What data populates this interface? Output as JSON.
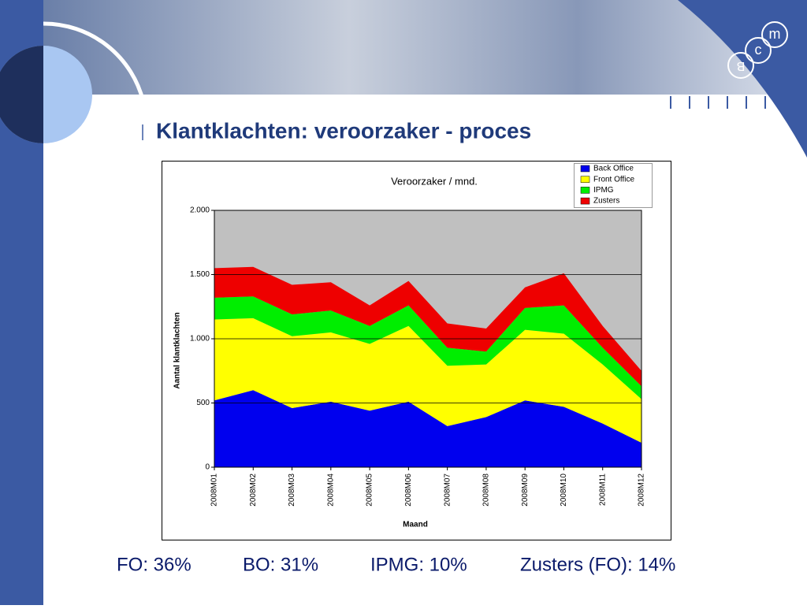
{
  "slide_title": "Klantklachten: veroorzaker - proces",
  "logo": [
    "m",
    "c",
    "B"
  ],
  "footer": [
    "FO: 36%",
    "BO: 31%",
    "IPMG: 10%",
    "Zusters (FO): 14%"
  ],
  "chart_data": {
    "type": "stacked_area",
    "title": "Veroorzaker / mnd.",
    "x_label": "Maand",
    "y_label": "Aantal klantklachten",
    "categories": [
      "2008M01",
      "2008M02",
      "2008M03",
      "2008M04",
      "2008M05",
      "2008M06",
      "2008M07",
      "2008M08",
      "2008M09",
      "2008M10",
      "2008M11",
      "2008M12"
    ],
    "series": [
      {
        "name": "Back Office",
        "color": "#0000ee",
        "values": [
          520,
          600,
          460,
          510,
          440,
          510,
          320,
          390,
          520,
          470,
          340,
          190
        ]
      },
      {
        "name": "Front Office",
        "color": "#ffff00",
        "values": [
          630,
          560,
          560,
          540,
          520,
          590,
          470,
          410,
          550,
          570,
          460,
          340
        ]
      },
      {
        "name": "IPMG",
        "color": "#00ee00",
        "values": [
          170,
          170,
          170,
          170,
          140,
          160,
          140,
          100,
          170,
          220,
          130,
          100
        ]
      },
      {
        "name": "Zusters",
        "color": "#ee0000",
        "values": [
          230,
          230,
          230,
          220,
          160,
          190,
          190,
          180,
          160,
          250,
          170,
          120
        ]
      }
    ],
    "ylim": [
      0,
      2000
    ],
    "yticks": [
      0,
      500,
      {
        "value": 1000,
        "label": "1.000"
      },
      {
        "value": 1500,
        "label": "1.500"
      },
      {
        "value": 2000,
        "label": "2.000"
      }
    ],
    "grid": true,
    "legend": "top-right",
    "plot_background": "#c0c0c0"
  }
}
